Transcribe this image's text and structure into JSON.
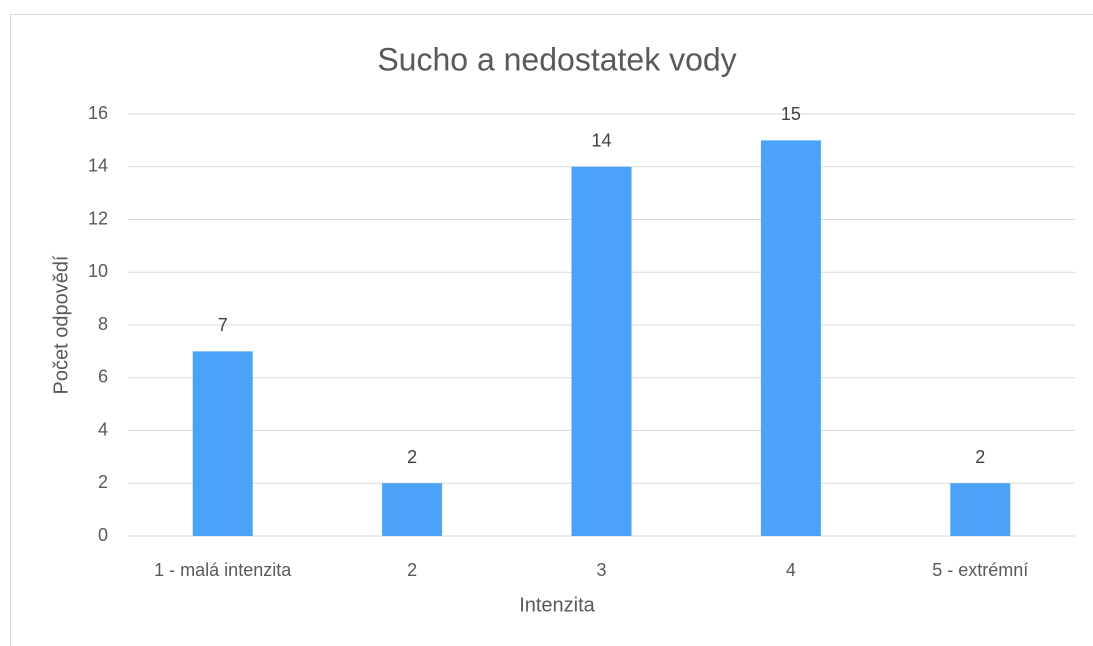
{
  "chart_data": {
    "type": "bar",
    "title": "Sucho a nedostatek vody",
    "xlabel": "Intenzita",
    "ylabel": "Počet odpovědí",
    "categories": [
      "1 - malá intenzita",
      "2",
      "3",
      "4",
      "5 - extrémní"
    ],
    "values": [
      7,
      2,
      14,
      15,
      2
    ],
    "color": "#4aa3f9",
    "ylim": [
      0,
      16
    ],
    "yticks": [
      0,
      2,
      4,
      6,
      8,
      10,
      12,
      14,
      16
    ],
    "grid": true,
    "data_labels": true
  }
}
